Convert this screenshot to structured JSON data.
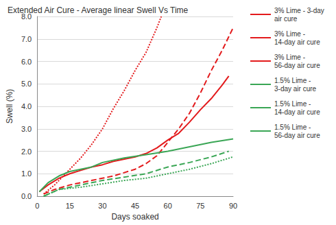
{
  "chart_data": {
    "type": "line",
    "title": "Extended Air Cure - Average linear Swell Vs Time",
    "x_label": "Days soaked",
    "y_label": "Swell (%)",
    "xlim": [
      0,
      90
    ],
    "xticks": [
      0,
      15,
      30,
      45,
      60,
      75,
      90
    ],
    "ylim": [
      0,
      8
    ],
    "yticks": [
      {
        "value": 0,
        "label": "0.0"
      },
      {
        "value": 1,
        "label": "1.0"
      },
      {
        "value": 2,
        "label": "2.0"
      },
      {
        "value": 3,
        "label": "3.0"
      },
      {
        "value": 4,
        "label": "4.0"
      },
      {
        "value": 5,
        "label": "5.0"
      },
      {
        "value": 6,
        "label": "6.0"
      },
      {
        "value": 7,
        "label": "7.0"
      },
      {
        "value": 8,
        "label": "8.0"
      }
    ],
    "grid": true,
    "legend": "right",
    "series": [
      {
        "name": "3% Lime - 3-day air cure",
        "color": "#e31a1c",
        "line_style": "solid",
        "x": [
          1,
          5,
          10,
          15,
          20,
          25,
          30,
          35,
          40,
          45,
          50,
          55,
          60,
          65,
          70,
          75,
          80,
          85,
          88
        ],
        "values": [
          0.2,
          0.5,
          0.8,
          1.0,
          1.15,
          1.3,
          1.4,
          1.55,
          1.65,
          1.75,
          1.9,
          2.15,
          2.5,
          2.8,
          3.3,
          3.85,
          4.35,
          4.95,
          5.35
        ]
      },
      {
        "name": "3% Lime - 14-day air cure",
        "color": "#e31a1c",
        "line_style": "dashed",
        "x": [
          3,
          8,
          15,
          20,
          25,
          30,
          35,
          40,
          45,
          50,
          55,
          60,
          65,
          70,
          75,
          80,
          85,
          90
        ],
        "values": [
          0.1,
          0.3,
          0.5,
          0.6,
          0.7,
          0.8,
          0.9,
          1.05,
          1.2,
          1.45,
          1.8,
          2.4,
          3.0,
          3.7,
          4.6,
          5.6,
          6.5,
          7.5
        ]
      },
      {
        "name": "3% Lime - 56-day air cure",
        "color": "#e31a1c",
        "line_style": "dotted",
        "x": [
          3,
          8,
          12,
          15,
          20,
          25,
          30,
          35,
          40,
          45,
          50,
          55,
          57
        ],
        "values": [
          0.1,
          0.5,
          0.9,
          1.2,
          1.7,
          2.3,
          3.0,
          3.9,
          4.7,
          5.6,
          6.4,
          7.5,
          8.0
        ]
      },
      {
        "name": "1.5% Lime - 3-day air cure",
        "color": "#3aa655",
        "line_style": "solid",
        "x": [
          1,
          5,
          10,
          15,
          20,
          25,
          30,
          40,
          50,
          60,
          70,
          80,
          90
        ],
        "values": [
          0.2,
          0.6,
          0.9,
          1.1,
          1.2,
          1.3,
          1.5,
          1.7,
          1.85,
          2.0,
          2.2,
          2.4,
          2.55
        ]
      },
      {
        "name": "1.5% Lime - 14-day air cure",
        "color": "#3aa655",
        "line_style": "dashed",
        "x": [
          3,
          10,
          20,
          30,
          40,
          50,
          60,
          70,
          80,
          88
        ],
        "values": [
          0.0,
          0.3,
          0.5,
          0.7,
          0.85,
          1.0,
          1.3,
          1.5,
          1.75,
          2.0
        ]
      },
      {
        "name": "1.5% Lime - 56-day air cure",
        "color": "#3aa655",
        "line_style": "dotted",
        "x": [
          3,
          10,
          20,
          30,
          40,
          50,
          60,
          70,
          80,
          90
        ],
        "values": [
          0.0,
          0.3,
          0.4,
          0.55,
          0.7,
          0.8,
          1.0,
          1.2,
          1.45,
          1.75
        ]
      }
    ]
  }
}
